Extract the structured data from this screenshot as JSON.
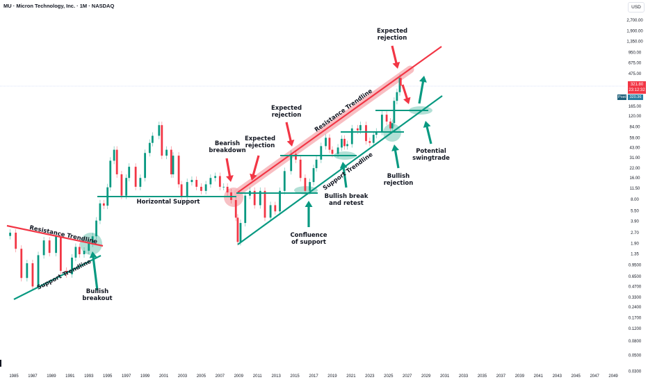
{
  "header": {
    "title": "MU · Micron Technology, Inc. · 1M · NASDAQ"
  },
  "price_axis": {
    "currency": "USD",
    "last_price": "321.80",
    "countdown": "23:12:32",
    "post_label": "Post",
    "post_price": "320.36"
  },
  "colors": {
    "up": "#089981",
    "down": "#f23645",
    "support": "#089981",
    "resistance": "#f23645",
    "band": "#f7b3b8"
  },
  "annotations": {
    "resistance_trendline_1": "Resistance Trendline",
    "support_trendline_1": "Support Trendline",
    "bullish_breakout": [
      "Bullish",
      "breakout"
    ],
    "horizontal_support": "Horizontal Support",
    "bearish_breakdown": [
      "Bearish",
      "breakdown"
    ],
    "expected_rejection_1": [
      "Expected",
      "rejection"
    ],
    "expected_rejection_2": [
      "Expected",
      "rejection"
    ],
    "expected_rejection_3": [
      "Expected",
      "rejection"
    ],
    "resistance_trendline_2": "Resistance Trendline",
    "support_trendline_2": "Support Trendline",
    "confluence": [
      "Confluence",
      "of support"
    ],
    "bullish_break_retest": [
      "Bullish break",
      "and retest"
    ],
    "bullish_rejection": [
      "Bullish",
      "rejection"
    ],
    "potential_swingtrade": [
      "Potential",
      "swingtrade"
    ]
  },
  "chart_data": {
    "type": "candlestick",
    "title": "MU · Micron Technology, Inc. · 1M · NASDAQ",
    "y_scale": "log",
    "y_ticks": [
      "2,700.00",
      "1,900.00",
      "1,350.00",
      "950.00",
      "675.00",
      "475.00",
      "165.00",
      "120.00",
      "84.00",
      "59.00",
      "43.00",
      "31.00",
      "22.00",
      "16.00",
      "11.50",
      "8.00",
      "5.50",
      "3.90",
      "2.70",
      "1.90",
      "1.35",
      "0.9500",
      "0.6500",
      "0.4700",
      "0.3300",
      "0.2400",
      "0.1700",
      "0.1200",
      "0.0800",
      "0.0500",
      "0.0300"
    ],
    "x_ticks": [
      "1985",
      "1987",
      "1989",
      "1991",
      "1993",
      "1995",
      "1997",
      "1999",
      "2001",
      "2003",
      "2005",
      "2007",
      "2009",
      "2011",
      "2013",
      "2015",
      "2017",
      "2019",
      "2021",
      "2023",
      "2025",
      "2027",
      "2029",
      "2031",
      "2033",
      "2035",
      "2037",
      "2039",
      "2041",
      "2043",
      "2045",
      "2047",
      "2049"
    ],
    "x_range": [
      1984,
      2050
    ],
    "closes": [
      [
        1984.6,
        2.7
      ],
      [
        1985.2,
        1.6
      ],
      [
        1985.8,
        0.62
      ],
      [
        1986.4,
        1.0
      ],
      [
        1987.0,
        0.47
      ],
      [
        1987.6,
        1.3
      ],
      [
        1988.2,
        2.1
      ],
      [
        1988.8,
        1.4
      ],
      [
        1989.5,
        2.4
      ],
      [
        1990.0,
        0.78
      ],
      [
        1990.6,
        0.7
      ],
      [
        1991.2,
        1.2
      ],
      [
        1991.6,
        1.7
      ],
      [
        1992.0,
        1.34
      ],
      [
        1992.5,
        1.5
      ],
      [
        1993.0,
        1.9
      ],
      [
        1993.4,
        2.4
      ],
      [
        1993.8,
        4.0
      ],
      [
        1994.2,
        7.0
      ],
      [
        1994.6,
        6.5
      ],
      [
        1995.0,
        11.8
      ],
      [
        1995.3,
        28
      ],
      [
        1995.7,
        40
      ],
      [
        1996.0,
        18
      ],
      [
        1996.5,
        9
      ],
      [
        1997.0,
        16
      ],
      [
        1997.3,
        23
      ],
      [
        1998.0,
        12
      ],
      [
        1998.5,
        16
      ],
      [
        1999.0,
        36
      ],
      [
        1999.5,
        50
      ],
      [
        1999.8,
        63
      ],
      [
        2000.5,
        89
      ],
      [
        2000.8,
        33
      ],
      [
        2001.3,
        40
      ],
      [
        2001.8,
        18
      ],
      [
        2002.0,
        33
      ],
      [
        2002.6,
        13
      ],
      [
        2002.9,
        8.8
      ],
      [
        2003.5,
        14
      ],
      [
        2004.0,
        15
      ],
      [
        2004.5,
        12
      ],
      [
        2005.0,
        10.5
      ],
      [
        2005.5,
        13
      ],
      [
        2006.0,
        16
      ],
      [
        2006.5,
        17
      ],
      [
        2007.0,
        12
      ],
      [
        2007.4,
        12
      ],
      [
        2007.8,
        10
      ],
      [
        2008.2,
        7.8
      ],
      [
        2008.7,
        4.4
      ],
      [
        2008.9,
        2.0
      ],
      [
        2009.2,
        3.7
      ],
      [
        2009.7,
        9
      ],
      [
        2010.2,
        10.5
      ],
      [
        2010.7,
        6.6
      ],
      [
        2011.3,
        10.5
      ],
      [
        2011.8,
        4.4
      ],
      [
        2012.4,
        6.6
      ],
      [
        2012.9,
        5.4
      ],
      [
        2013.4,
        10.5
      ],
      [
        2013.9,
        20
      ],
      [
        2014.6,
        35
      ],
      [
        2015.1,
        29
      ],
      [
        2015.6,
        16
      ],
      [
        2016.1,
        10.5
      ],
      [
        2016.6,
        14
      ],
      [
        2017.0,
        22
      ],
      [
        2017.3,
        29
      ],
      [
        2017.8,
        45
      ],
      [
        2018.3,
        59
      ],
      [
        2018.7,
        40
      ],
      [
        2019.0,
        35
      ],
      [
        2019.6,
        43
      ],
      [
        2020.0,
        57
      ],
      [
        2020.3,
        45
      ],
      [
        2020.6,
        48
      ],
      [
        2021.1,
        80
      ],
      [
        2021.7,
        75
      ],
      [
        2022.0,
        89
      ],
      [
        2022.6,
        53
      ],
      [
        2023.0,
        50
      ],
      [
        2023.4,
        65
      ],
      [
        2023.7,
        72
      ],
      [
        2024.3,
        125
      ],
      [
        2024.8,
        100
      ],
      [
        2025.2,
        80
      ],
      [
        2025.4,
        95
      ],
      [
        2025.6,
        196
      ],
      [
        2025.9,
        260
      ],
      [
        2026.2,
        413
      ],
      [
        2026.3,
        321.8
      ]
    ],
    "last_price": 321.8,
    "grid": false
  }
}
